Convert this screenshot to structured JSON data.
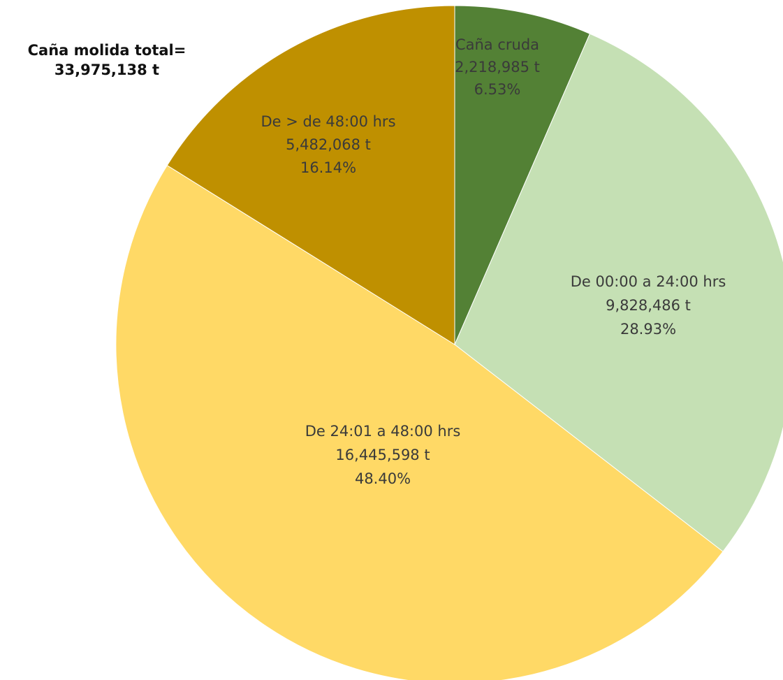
{
  "total_label": "Caña molida total=",
  "total_value": "33,975,138 t",
  "chart_data": {
    "type": "pie",
    "title": "Caña molida total= 33,975,138 t",
    "total": 33975138,
    "unit": "t",
    "legend": "none",
    "slices": [
      {
        "name": "Caña cruda",
        "value": 2218985,
        "value_label": "2,218,985",
        "unit_label": "t",
        "percent": 6.53,
        "percent_label": "6.53%",
        "color": "#538135",
        "text_color": "#3a3a3a"
      },
      {
        "name": "De 00:00 a 24:00 hrs",
        "value": 9828486,
        "value_label": "9,828,486",
        "unit_label": "t",
        "percent": 28.93,
        "percent_label": "28.93%",
        "color": "#c5e0b4",
        "text_color": "#3a3a3a"
      },
      {
        "name": "De 24:01 a 48:00 hrs",
        "value": 16445598,
        "value_label": "16,445,598",
        "unit_label": "t",
        "percent": 48.4,
        "percent_label": "48.40%",
        "color": "#ffd966",
        "text_color": "#3a3a3a"
      },
      {
        "name": "De > de 48:00 hrs",
        "value": 5482068,
        "value_label": "5,482,068",
        "unit_label": "t",
        "percent": 16.14,
        "percent_label": "16.14%",
        "color": "#bf9000",
        "text_color": "#3a3a3a"
      }
    ]
  }
}
